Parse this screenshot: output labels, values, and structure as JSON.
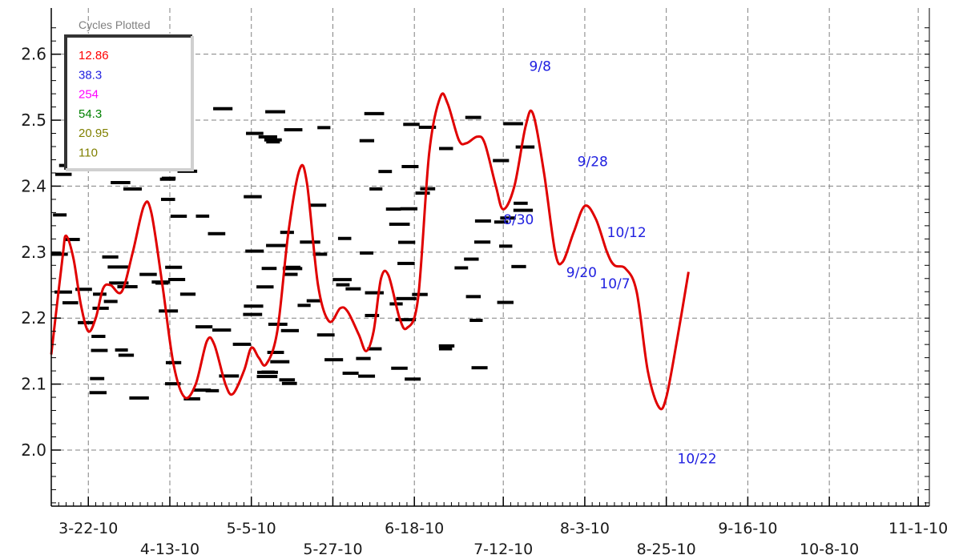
{
  "chart_data": {
    "type": "line",
    "title": "",
    "xlabel": "",
    "ylabel": "",
    "ylim": [
      1.915,
      2.67
    ],
    "xlim": [
      "2010-03-12",
      "2010-11-04"
    ],
    "grid": true,
    "x_ticks": [
      {
        "date": "2010-03-22",
        "label": "3-22-10"
      },
      {
        "date": "2010-04-13",
        "label": "4-13-10"
      },
      {
        "date": "2010-05-05",
        "label": "5-5-10"
      },
      {
        "date": "2010-05-27",
        "label": "5-27-10"
      },
      {
        "date": "2010-06-18",
        "label": "6-18-10"
      },
      {
        "date": "2010-07-12",
        "label": "7-12-10"
      },
      {
        "date": "2010-08-03",
        "label": "8-3-10"
      },
      {
        "date": "2010-08-25",
        "label": "8-25-10"
      },
      {
        "date": "2010-09-16",
        "label": "9-16-10"
      },
      {
        "date": "2010-10-08",
        "label": "10-8-10"
      },
      {
        "date": "2010-11-01",
        "label": "11-1-10"
      }
    ],
    "y_ticks": [
      {
        "value": 2.0,
        "label": "2.0"
      },
      {
        "value": 2.1,
        "label": "2.1"
      },
      {
        "value": 2.2,
        "label": "2.2"
      },
      {
        "value": 2.3,
        "label": "2.3"
      },
      {
        "value": 2.4,
        "label": "2.4"
      },
      {
        "value": 2.5,
        "label": "2.5"
      },
      {
        "value": 2.6,
        "label": "2.6"
      }
    ],
    "legend": {
      "title": "Cycles Plotted",
      "placement": "top-left",
      "entries": [
        {
          "label": "12.86",
          "color": "#ff0000"
        },
        {
          "label": "38.3",
          "color": "#2020e0"
        },
        {
          "label": "254",
          "color": "#ff00ff"
        },
        {
          "label": "54.3",
          "color": "#008000"
        },
        {
          "label": "20.95",
          "color": "#808000"
        },
        {
          "label": "110",
          "color": "#808000"
        }
      ]
    },
    "series": [
      {
        "color": "#e00000",
        "points": [
          [
            "2010-03-12",
            2.145
          ],
          [
            "2010-03-15",
            2.29
          ],
          [
            "2010-03-16",
            2.325
          ],
          [
            "2010-03-18",
            2.29
          ],
          [
            "2010-03-20",
            2.22
          ],
          [
            "2010-03-22",
            2.18
          ],
          [
            "2010-03-24",
            2.2
          ],
          [
            "2010-03-26",
            2.245
          ],
          [
            "2010-03-28",
            2.25
          ],
          [
            "2010-03-31",
            2.24
          ],
          [
            "2010-04-03",
            2.3
          ],
          [
            "2010-04-06",
            2.37
          ],
          [
            "2010-04-08",
            2.36
          ],
          [
            "2010-04-11",
            2.25
          ],
          [
            "2010-04-14",
            2.13
          ],
          [
            "2010-04-17",
            2.08
          ],
          [
            "2010-04-20",
            2.1
          ],
          [
            "2010-04-23",
            2.165
          ],
          [
            "2010-04-25",
            2.16
          ],
          [
            "2010-04-28",
            2.1
          ],
          [
            "2010-04-30",
            2.085
          ],
          [
            "2010-05-03",
            2.12
          ],
          [
            "2010-05-05",
            2.155
          ],
          [
            "2010-05-07",
            2.14
          ],
          [
            "2010-05-09",
            2.13
          ],
          [
            "2010-05-12",
            2.18
          ],
          [
            "2010-05-15",
            2.33
          ],
          [
            "2010-05-18",
            2.425
          ],
          [
            "2010-05-20",
            2.405
          ],
          [
            "2010-05-23",
            2.25
          ],
          [
            "2010-05-26",
            2.195
          ],
          [
            "2010-05-29",
            2.215
          ],
          [
            "2010-05-31",
            2.21
          ],
          [
            "2010-06-03",
            2.175
          ],
          [
            "2010-06-05",
            2.15
          ],
          [
            "2010-06-07",
            2.18
          ],
          [
            "2010-06-09",
            2.26
          ],
          [
            "2010-06-11",
            2.265
          ],
          [
            "2010-06-14",
            2.2
          ],
          [
            "2010-06-16",
            2.185
          ],
          [
            "2010-06-19",
            2.23
          ],
          [
            "2010-06-22",
            2.45
          ],
          [
            "2010-06-25",
            2.535
          ],
          [
            "2010-06-27",
            2.525
          ],
          [
            "2010-06-30",
            2.47
          ],
          [
            "2010-07-02",
            2.465
          ],
          [
            "2010-07-05",
            2.475
          ],
          [
            "2010-07-07",
            2.465
          ],
          [
            "2010-07-10",
            2.4
          ],
          [
            "2010-07-12",
            2.365
          ],
          [
            "2010-07-15",
            2.4
          ],
          [
            "2010-07-18",
            2.49
          ],
          [
            "2010-07-20",
            2.51
          ],
          [
            "2010-07-23",
            2.42
          ],
          [
            "2010-07-26",
            2.3
          ],
          [
            "2010-07-28",
            2.285
          ],
          [
            "2010-07-31",
            2.33
          ],
          [
            "2010-08-03",
            2.37
          ],
          [
            "2010-08-06",
            2.35
          ],
          [
            "2010-08-09",
            2.3
          ],
          [
            "2010-08-11",
            2.28
          ],
          [
            "2010-08-14",
            2.275
          ],
          [
            "2010-08-17",
            2.24
          ],
          [
            "2010-08-20",
            2.12
          ],
          [
            "2010-08-23",
            2.065
          ],
          [
            "2010-08-25",
            2.08
          ],
          [
            "2010-08-28",
            2.17
          ],
          [
            "2010-08-31",
            2.27
          ]
        ]
      }
    ],
    "annotations": [
      {
        "text": "9/8",
        "date": "2010-07-19",
        "value": 2.575
      },
      {
        "text": "8/30",
        "date": "2010-07-12",
        "value": 2.342
      },
      {
        "text": "9/28",
        "date": "2010-08-01",
        "value": 2.43
      },
      {
        "text": "9/20",
        "date": "2010-07-29",
        "value": 2.262
      },
      {
        "text": "10/12",
        "date": "2010-08-09",
        "value": 2.323
      },
      {
        "text": "10/7",
        "date": "2010-08-07",
        "value": 2.245
      },
      {
        "text": "10/22",
        "date": "2010-08-28",
        "value": 1.98
      }
    ]
  }
}
